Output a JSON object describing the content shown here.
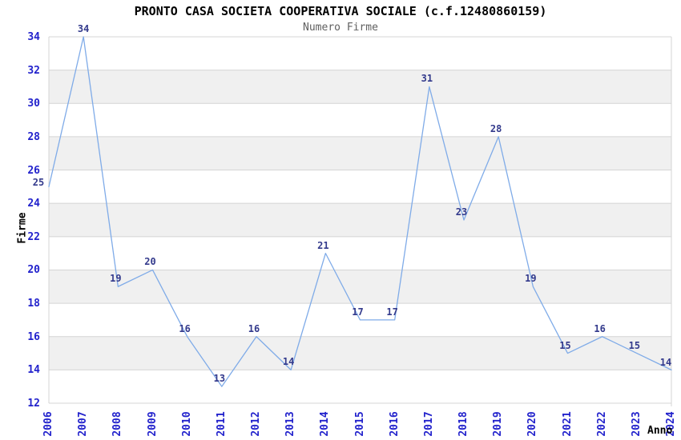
{
  "chart_data": {
    "type": "line",
    "title": "PRONTO CASA SOCIETA COOPERATIVA SOCIALE (c.f.12480860159)",
    "subtitle": "Numero Firme",
    "xlabel": "Anno",
    "ylabel": "Firme",
    "categories": [
      "2006",
      "2007",
      "2008",
      "2009",
      "2010",
      "2011",
      "2012",
      "2013",
      "2014",
      "2015",
      "2016",
      "2017",
      "2018",
      "2019",
      "2020",
      "2021",
      "2022",
      "2023",
      "2024"
    ],
    "series": [
      {
        "name": "Numero Firme",
        "values": [
          25,
          34,
          19,
          20,
          16,
          13,
          16,
          14,
          21,
          17,
          17,
          31,
          23,
          28,
          19,
          15,
          16,
          15,
          14
        ]
      }
    ],
    "data_labels_shown": true,
    "ylim": [
      12,
      34
    ],
    "ytick_step": 2,
    "grid": "horizontal",
    "banded_rows": true,
    "legend": "none",
    "colors": {
      "line": "#7fabe8",
      "tick_label": "#2222cc",
      "data_label": "#333a8c",
      "band": "#f0f0f0",
      "grid_line": "#d4d4d4",
      "title": "#000000",
      "subtitle": "#606060",
      "axis_title": "#000000",
      "background": "#ffffff"
    }
  }
}
